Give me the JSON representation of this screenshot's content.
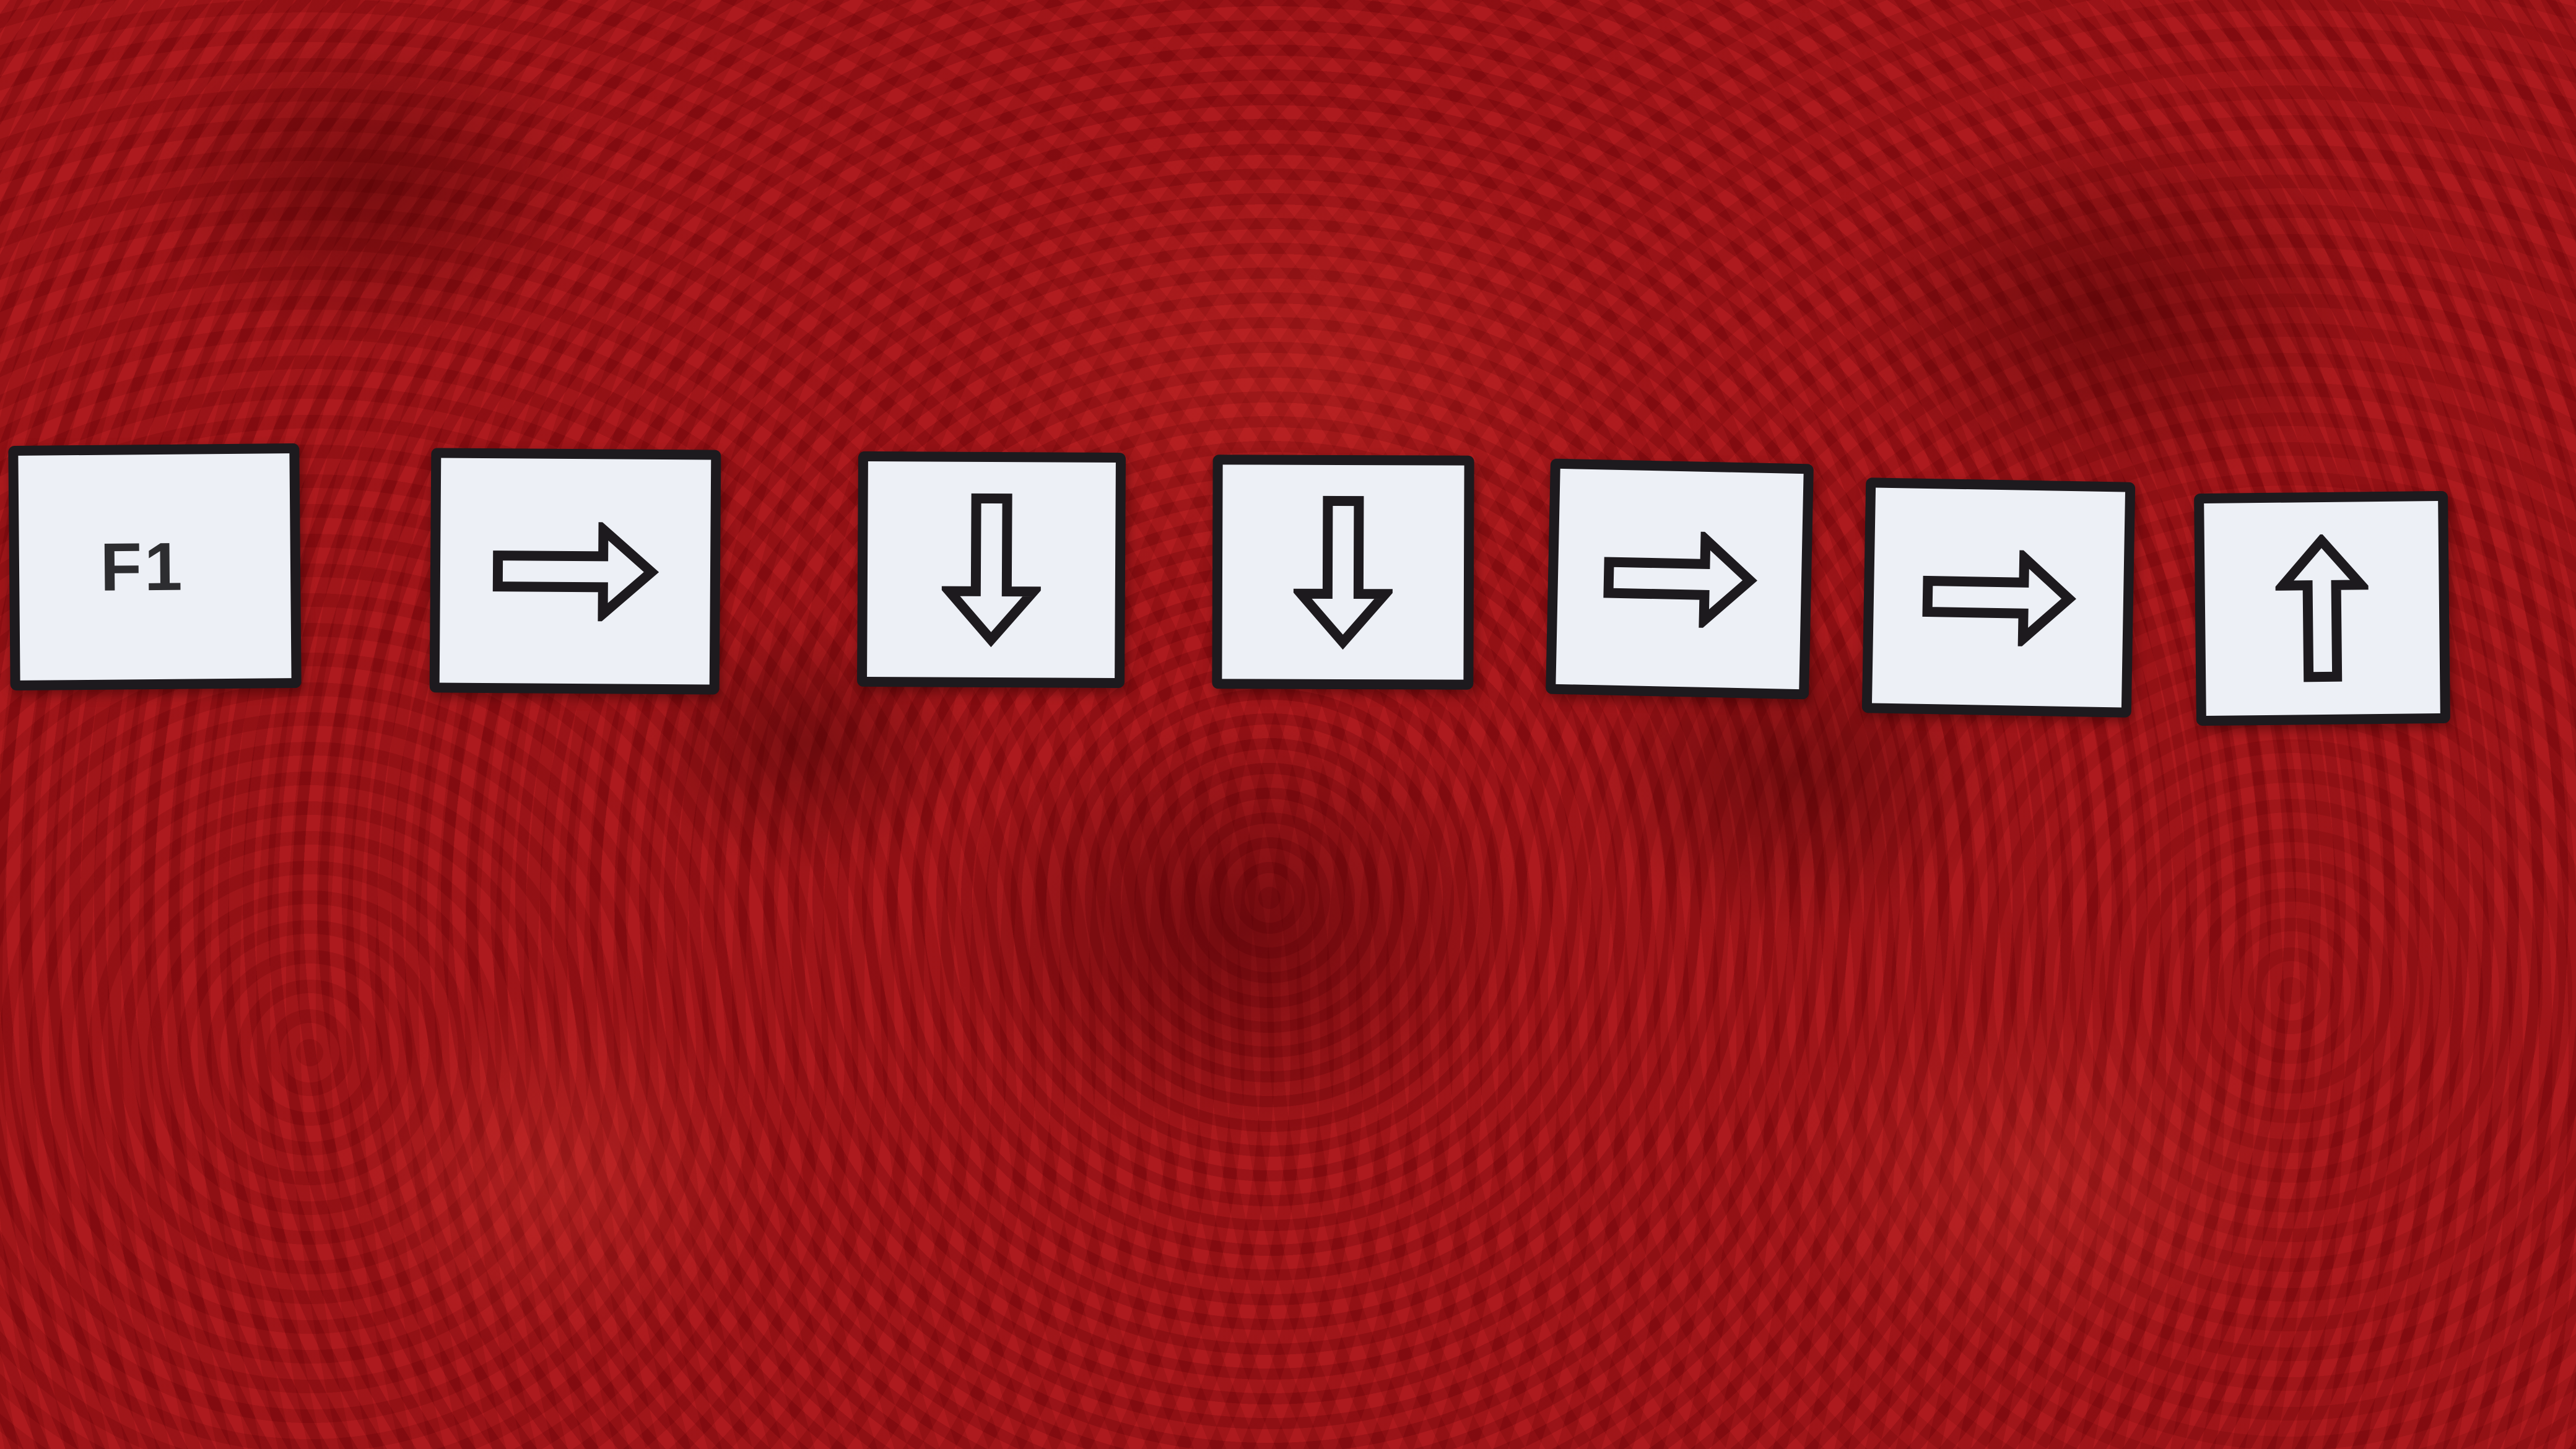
{
  "cards": [
    {
      "label": "F1",
      "icon": "text-label"
    },
    {
      "label": "",
      "icon": "arrow-right-icon"
    },
    {
      "label": "",
      "icon": "arrow-down-icon"
    },
    {
      "label": "",
      "icon": "arrow-down-icon"
    },
    {
      "label": "",
      "icon": "arrow-right-icon"
    },
    {
      "label": "",
      "icon": "arrow-right-icon"
    },
    {
      "label": "",
      "icon": "arrow-up-icon"
    }
  ],
  "colors": {
    "background": "#a3141c",
    "card_face": "#edf0f6",
    "card_border": "#1d1a1e",
    "arrow_stroke": "#1d1a1e"
  }
}
